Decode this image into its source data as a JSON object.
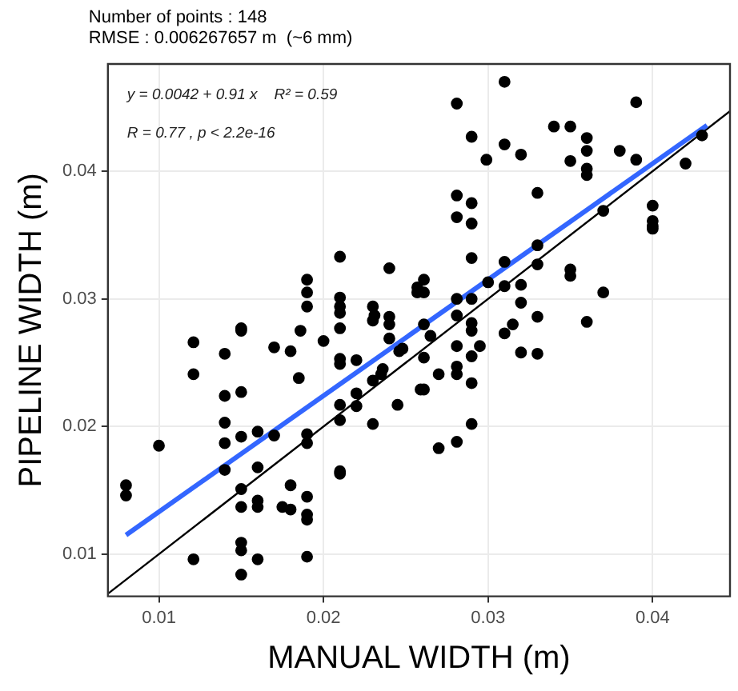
{
  "chart_data": {
    "type": "scatter",
    "title": "Number of points : 148",
    "subtitle": "RMSE : 0.006267657 m  (~6 mm)",
    "xlabel": "MANUAL WIDTH (m)",
    "ylabel": "PIPELINE WIDTH (m)",
    "annotations": [
      "y = 0.0042 + 0.91 x    R² = 0.59",
      "R = 0.77 , p < 2.2e-16"
    ],
    "xlim": [
      0.0069,
      0.0447
    ],
    "ylim": [
      0.0067,
      0.0484
    ],
    "xticks": [
      0.01,
      0.02,
      0.03,
      0.04
    ],
    "yticks": [
      0.01,
      0.02,
      0.03,
      0.04
    ],
    "grid": true,
    "legend": false,
    "series": [
      {
        "marker": "circle",
        "color": "#000000",
        "x": [
          0.015,
          0.0121,
          0.014,
          0.017,
          0.018,
          0.0186,
          0.02,
          0.021,
          0.0121,
          0.0185,
          0.021,
          0.021,
          0.022,
          0.014,
          0.015,
          0.021,
          0.022,
          0.022,
          0.0245,
          0.014,
          0.015,
          0.014,
          0.016,
          0.017,
          0.019,
          0.019,
          0.021,
          0.023,
          0.01,
          0.014,
          0.016,
          0.021,
          0.021,
          0.008,
          0.008,
          0.015,
          0.018,
          0.015,
          0.016,
          0.016,
          0.0175,
          0.018,
          0.019,
          0.019,
          0.019,
          0.0121,
          0.015,
          0.015,
          0.016,
          0.015,
          0.019,
          0.023,
          0.024,
          0.024,
          0.0246,
          0.0236,
          0.0235,
          0.023,
          0.0259,
          0.021,
          0.024,
          0.019,
          0.019,
          0.019,
          0.021,
          0.021,
          0.021,
          0.023,
          0.0231,
          0.024,
          0.015,
          0.0257,
          0.0257,
          0.031,
          0.0281,
          0.039,
          0.029,
          0.031,
          0.0299,
          0.032,
          0.034,
          0.035,
          0.036,
          0.036,
          0.035,
          0.036,
          0.036,
          0.038,
          0.039,
          0.042,
          0.043,
          0.033,
          0.0281,
          0.029,
          0.0281,
          0.029,
          0.037,
          0.04,
          0.04,
          0.04,
          0.04,
          0.033,
          0.033,
          0.029,
          0.031,
          0.0261,
          0.0261,
          0.035,
          0.035,
          0.03,
          0.031,
          0.032,
          0.037,
          0.0281,
          0.029,
          0.032,
          0.0281,
          0.033,
          0.036,
          0.029,
          0.029,
          0.0315,
          0.031,
          0.0261,
          0.0281,
          0.0295,
          0.029,
          0.032,
          0.033,
          0.0265,
          0.0261,
          0.0248,
          0.027,
          0.0281,
          0.0281,
          0.0261,
          0.029,
          0.029,
          0.0281,
          0.027
        ],
        "values": [
          0.0275,
          0.0266,
          0.0257,
          0.0262,
          0.0259,
          0.0275,
          0.0267,
          0.0277,
          0.0241,
          0.0238,
          0.0253,
          0.0249,
          0.0252,
          0.0224,
          0.0227,
          0.0217,
          0.0226,
          0.0216,
          0.0217,
          0.0203,
          0.0192,
          0.0187,
          0.0196,
          0.0193,
          0.0194,
          0.0187,
          0.0205,
          0.0202,
          0.0185,
          0.0166,
          0.0168,
          0.0165,
          0.0163,
          0.0154,
          0.0146,
          0.0151,
          0.0154,
          0.0137,
          0.0142,
          0.0137,
          0.0137,
          0.0135,
          0.0145,
          0.0131,
          0.0127,
          0.0096,
          0.0109,
          0.0103,
          0.0096,
          0.0084,
          0.0098,
          0.0283,
          0.028,
          0.0269,
          0.0259,
          0.0245,
          0.0241,
          0.0236,
          0.0229,
          0.0333,
          0.0324,
          0.0315,
          0.0305,
          0.0294,
          0.0301,
          0.0294,
          0.0289,
          0.0294,
          0.0287,
          0.0286,
          0.0277,
          0.0309,
          0.0305,
          0.047,
          0.0453,
          0.0454,
          0.0427,
          0.0421,
          0.0409,
          0.0413,
          0.0435,
          0.0435,
          0.0426,
          0.0416,
          0.0408,
          0.0402,
          0.0397,
          0.0416,
          0.0409,
          0.0406,
          0.0428,
          0.0383,
          0.0381,
          0.0375,
          0.0364,
          0.0359,
          0.0369,
          0.0373,
          0.0361,
          0.0357,
          0.0355,
          0.0342,
          0.0327,
          0.0332,
          0.0329,
          0.0315,
          0.0305,
          0.0323,
          0.0318,
          0.0313,
          0.031,
          0.0311,
          0.0305,
          0.03,
          0.03,
          0.0297,
          0.0287,
          0.0286,
          0.0282,
          0.0281,
          0.0275,
          0.028,
          0.0273,
          0.028,
          0.0263,
          0.0263,
          0.0255,
          0.0258,
          0.0257,
          0.0271,
          0.0254,
          0.0261,
          0.0241,
          0.0247,
          0.0241,
          0.0229,
          0.0234,
          0.0202,
          0.0188,
          0.0183
        ]
      },
      {
        "type": "line",
        "marker": "none",
        "color": "#3366ff",
        "x": [
          0.008,
          0.0433
        ],
        "values": [
          0.0115,
          0.0436
        ]
      },
      {
        "type": "line",
        "marker": "none",
        "color": "#000000",
        "x": [
          0.0069,
          0.0447
        ],
        "values": [
          0.0069,
          0.0447
        ]
      }
    ]
  }
}
